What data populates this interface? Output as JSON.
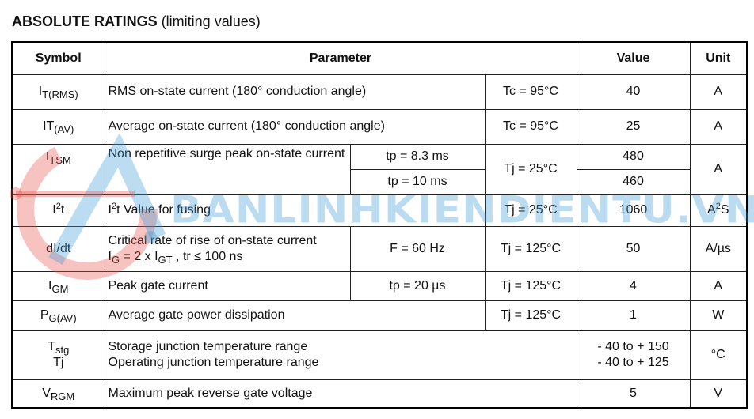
{
  "title": {
    "bold": "ABSOLUTE RATINGS",
    "normal": "(limiting values)"
  },
  "header": {
    "symbol": "Symbol",
    "parameter": "Parameter",
    "value": "Value",
    "unit": "Unit"
  },
  "rows": {
    "itrms": {
      "sym": "I",
      "sub": "T(RMS)",
      "param": "RMS on-state current (180° conduction angle)",
      "cond": "Tc = 95°C",
      "value": "40",
      "unit": "A"
    },
    "itav": {
      "sym": "IT",
      "sub": "(AV)",
      "param": "Average on-state current (180° conduction angle)",
      "cond": "Tc = 95°C",
      "value": "25",
      "unit": "A"
    },
    "itsm": {
      "sym": "I",
      "sub": "TSM",
      "param": "Non repetitive surge peak on-state current",
      "cond1a": "tp = 8.3 ms",
      "cond1b": "tp = 10 ms",
      "cond": "Tj = 25°C",
      "valuea": "480",
      "valueb": "460",
      "unit": "A"
    },
    "i2t": {
      "sym": "I",
      "sup": "2",
      "sym2": "t",
      "p_i": "I",
      "p_sup": "2",
      "param": "t Value for fusing",
      "cond": "Tj = 25°C",
      "value": "1060",
      "unit": "A",
      "unit_sup": "2",
      "unit2": "S"
    },
    "didt": {
      "sym": "dI/dt",
      "param": "Critical rate of rise of on-state current",
      "l2a": "I",
      "l2b": "G",
      "l2c": " = 2 x I",
      "l2d": "GT",
      "l2e": " , tr ≤ 100 ns",
      "cond1": "F = 60 Hz",
      "cond": "Tj = 125°C",
      "value": "50",
      "unit": "A/µs"
    },
    "igm": {
      "sym": "I",
      "sub": "GM",
      "param": "Peak gate current",
      "cond1": "tp = 20 µs",
      "cond": "Tj = 125°C",
      "value": "4",
      "unit": "A"
    },
    "pgav": {
      "sym": "P",
      "sub": "G(AV)",
      "param": "Average gate power dissipation",
      "cond": "Tj = 125°C",
      "value": "1",
      "unit": "W"
    },
    "temp": {
      "sym": "T",
      "sub": "stg",
      "sym2": "Tj",
      "param1": "Storage junction temperature range",
      "param2": "Operating junction temperature range",
      "value1": "- 40 to + 150",
      "value2": "- 40 to + 125",
      "unit": "°C"
    },
    "vrgm": {
      "sym": "V",
      "sub": "RGM",
      "param": "Maximum peak reverse gate voltage",
      "value": "5",
      "unit": "V"
    }
  },
  "watermark": "BANLINHKIENDIENTU.VN",
  "colors": {
    "watermark_blue": "#3d9bd6",
    "watermark_red": "#e8524a"
  }
}
